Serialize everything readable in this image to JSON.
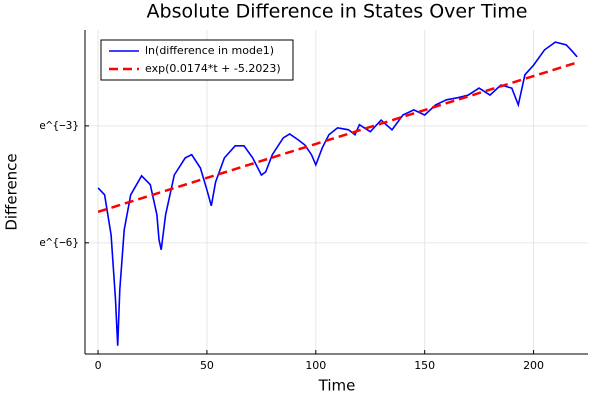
{
  "chart_data": {
    "type": "line",
    "title": "Absolute Difference in States Over Time",
    "xlabel": "Time",
    "ylabel": "Difference",
    "xlim": [
      -6,
      225
    ],
    "xticks": [
      0,
      50,
      100,
      150,
      200
    ],
    "ylim": [
      0.000143,
      0.583
    ],
    "yscale": "log",
    "yticks": [
      {
        "value": 0.0497871,
        "label": "e^{−3}"
      },
      {
        "value": 0.00247875,
        "label": "e^{−6}"
      }
    ],
    "grid": true,
    "legend": "top-left",
    "series": [
      {
        "name": "ln(difference in mode1)",
        "color": "#0000ff",
        "dash": false,
        "x": [
          0,
          3,
          6,
          8,
          9,
          10,
          12,
          15,
          20,
          24,
          27,
          28,
          29,
          31,
          35,
          40,
          43,
          47,
          50,
          52,
          54,
          58,
          63,
          67,
          71,
          75,
          77,
          80,
          85,
          88,
          92,
          95,
          98,
          100,
          103,
          106,
          110,
          115,
          118,
          120,
          125,
          130,
          135,
          140,
          145,
          150,
          155,
          160,
          165,
          170,
          175,
          180,
          185,
          190,
          193,
          196,
          200,
          205,
          210,
          215,
          218,
          220
        ],
        "values": [
          0.01015,
          0.00849,
          0.00303,
          0.000576,
          0.000177,
          0.000747,
          0.00345,
          0.00849,
          0.01384,
          0.011,
          0.00509,
          0.00269,
          0.00207,
          0.00509,
          0.01412,
          0.0219,
          0.0238,
          0.0169,
          0.00965,
          0.00641,
          0.0118,
          0.0219,
          0.0299,
          0.0299,
          0.0219,
          0.01412,
          0.0153,
          0.0238,
          0.0365,
          0.0404,
          0.0347,
          0.0305,
          0.0238,
          0.0183,
          0.0284,
          0.0396,
          0.0474,
          0.045,
          0.0396,
          0.0513,
          0.0429,
          0.0578,
          0.045,
          0.0659,
          0.075,
          0.0659,
          0.0854,
          0.0973,
          0.1023,
          0.1097,
          0.1313,
          0.1097,
          0.1423,
          0.1313,
          0.0854,
          0.1845,
          0.2369,
          0.3499,
          0.4274,
          0.3985,
          0.3329,
          0.2923
        ]
      },
      {
        "name": "exp(0.0174*t + -5.2023)",
        "color": "#ff0000",
        "dash": true,
        "x": [
          0,
          220
        ],
        "values": [
          0.0055,
          0.253
        ]
      }
    ]
  }
}
